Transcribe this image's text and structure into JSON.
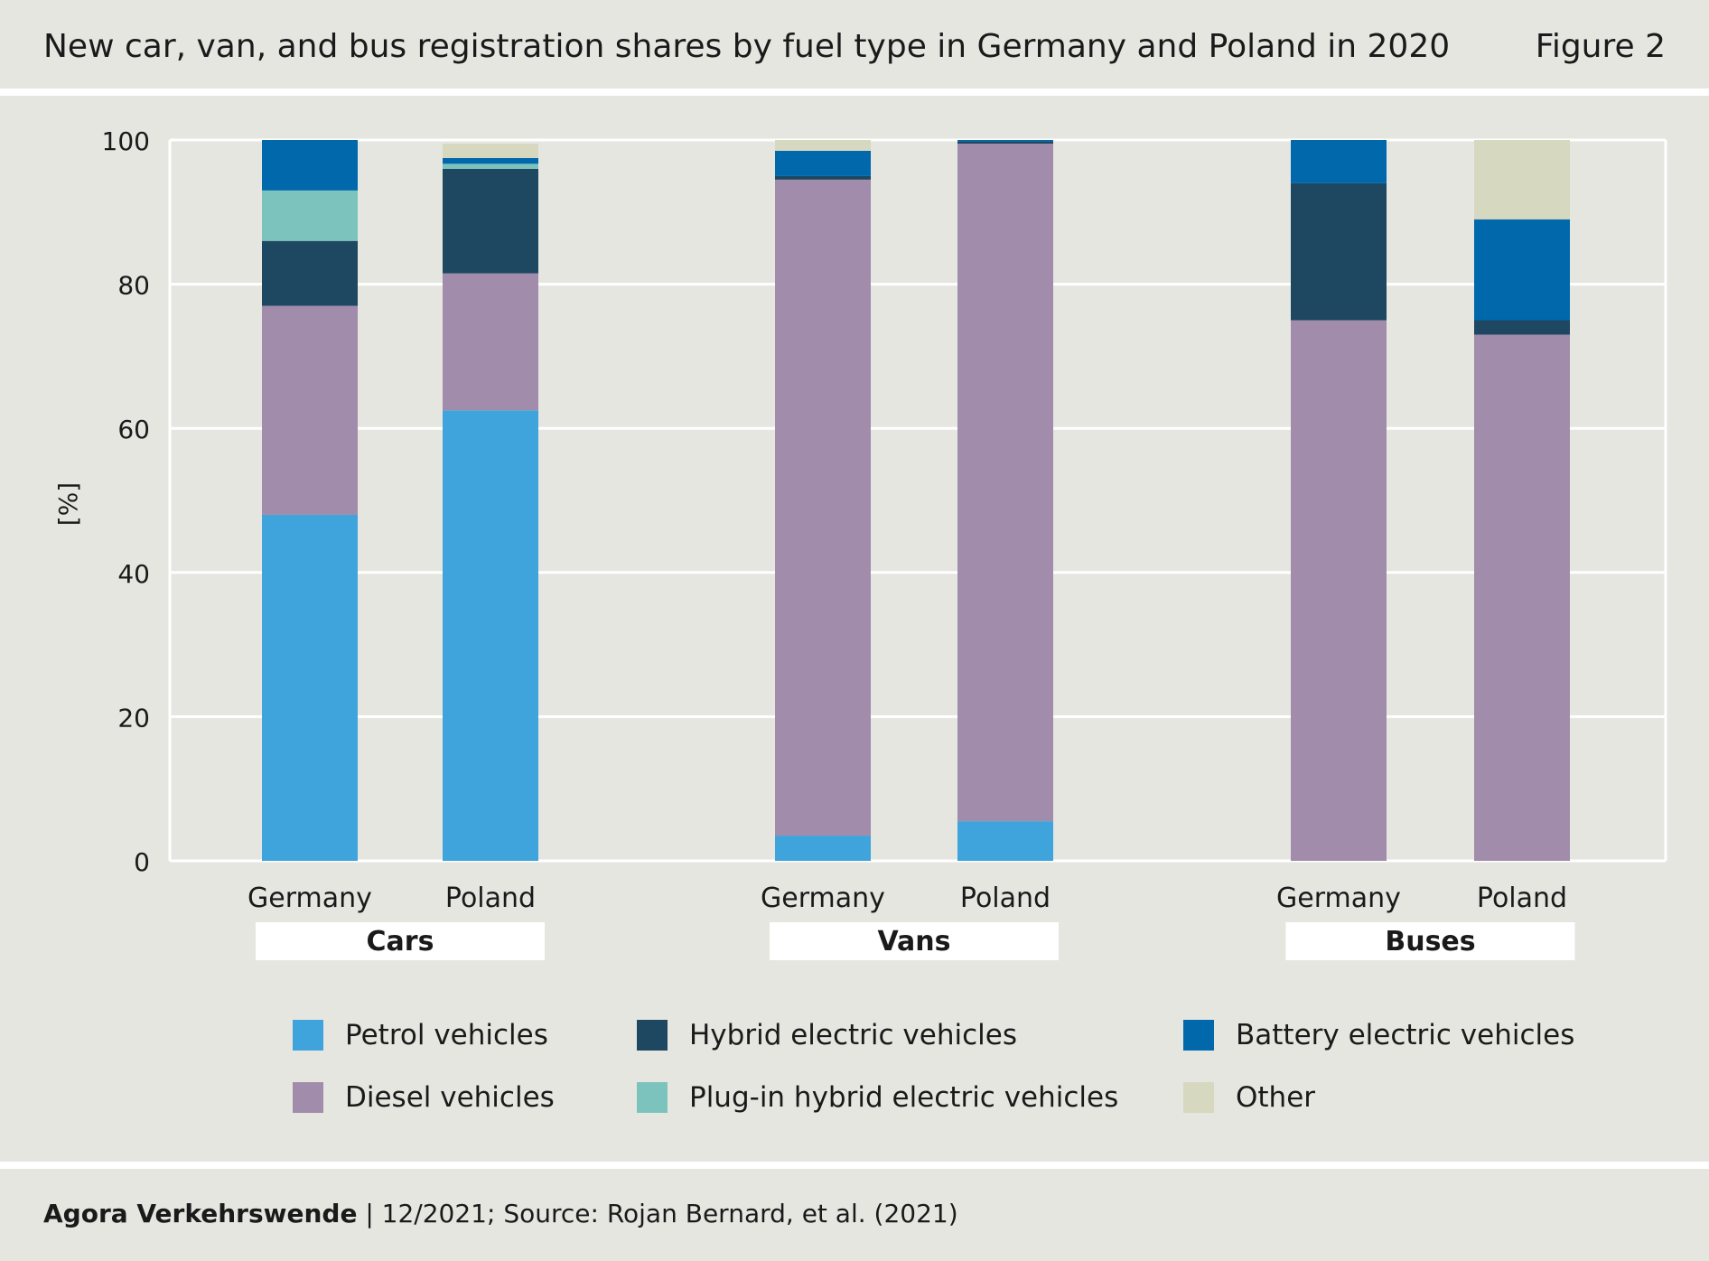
{
  "header": {
    "title": "New car, van, and bus registration shares by fuel type in Germany and Poland in 2020",
    "figure_label": "Figure 2"
  },
  "footer": {
    "organization": "Agora Verkehrswende",
    "source": " | 12/2021; Source: Rojan Bernard, et al. (2021)"
  },
  "colors": {
    "petrol": "#3fa3dc",
    "diesel": "#a28cab",
    "hybrid": "#1e4762",
    "phev": "#7bc3bc",
    "battery": "#0068ab",
    "other": "#d6d8c0",
    "background": "#e6e6e1",
    "grid": "#ffffff"
  },
  "legend": [
    {
      "key": "petrol",
      "label": "Petrol vehicles"
    },
    {
      "key": "hybrid",
      "label": "Hybrid electric vehicles"
    },
    {
      "key": "battery",
      "label": "Battery electric vehicles"
    },
    {
      "key": "diesel",
      "label": "Diesel vehicles"
    },
    {
      "key": "phev",
      "label": "Plug-in hybrid electric vehicles"
    },
    {
      "key": "other",
      "label": "Other"
    }
  ],
  "chart_data": {
    "type": "bar",
    "stacked": true,
    "title": "New car, van, and bus registration shares by fuel type in Germany and Poland in 2020",
    "ylabel": "[%]",
    "xlabel": "",
    "ylim": [
      0,
      100
    ],
    "yticks": [
      0,
      20,
      40,
      60,
      80,
      100
    ],
    "grid": true,
    "legend_position": "bottom",
    "groups": [
      "Cars",
      "Vans",
      "Buses"
    ],
    "categories": [
      "Germany",
      "Poland",
      "Germany",
      "Poland",
      "Germany",
      "Poland"
    ],
    "category_groups": [
      "Cars",
      "Cars",
      "Vans",
      "Vans",
      "Buses",
      "Buses"
    ],
    "series": [
      {
        "key": "petrol",
        "name": "Petrol vehicles",
        "values": [
          48.0,
          62.5,
          3.5,
          5.5,
          0,
          0
        ]
      },
      {
        "key": "diesel",
        "name": "Diesel vehicles",
        "values": [
          29.0,
          19.0,
          91.0,
          94.0,
          75.0,
          73.0
        ]
      },
      {
        "key": "hybrid",
        "name": "Hybrid electric vehicles",
        "values": [
          9.0,
          14.5,
          0.5,
          0.3,
          19.0,
          2.0
        ]
      },
      {
        "key": "phev",
        "name": "Plug-in hybrid electric vehicles",
        "values": [
          7.0,
          0.7,
          0,
          0,
          0,
          0
        ]
      },
      {
        "key": "battery",
        "name": "Battery electric vehicles",
        "values": [
          7.0,
          0.8,
          3.5,
          0.2,
          6.0,
          14.0
        ]
      },
      {
        "key": "other",
        "name": "Other",
        "values": [
          0,
          2.0,
          1.5,
          0,
          0,
          11.0
        ]
      }
    ]
  }
}
